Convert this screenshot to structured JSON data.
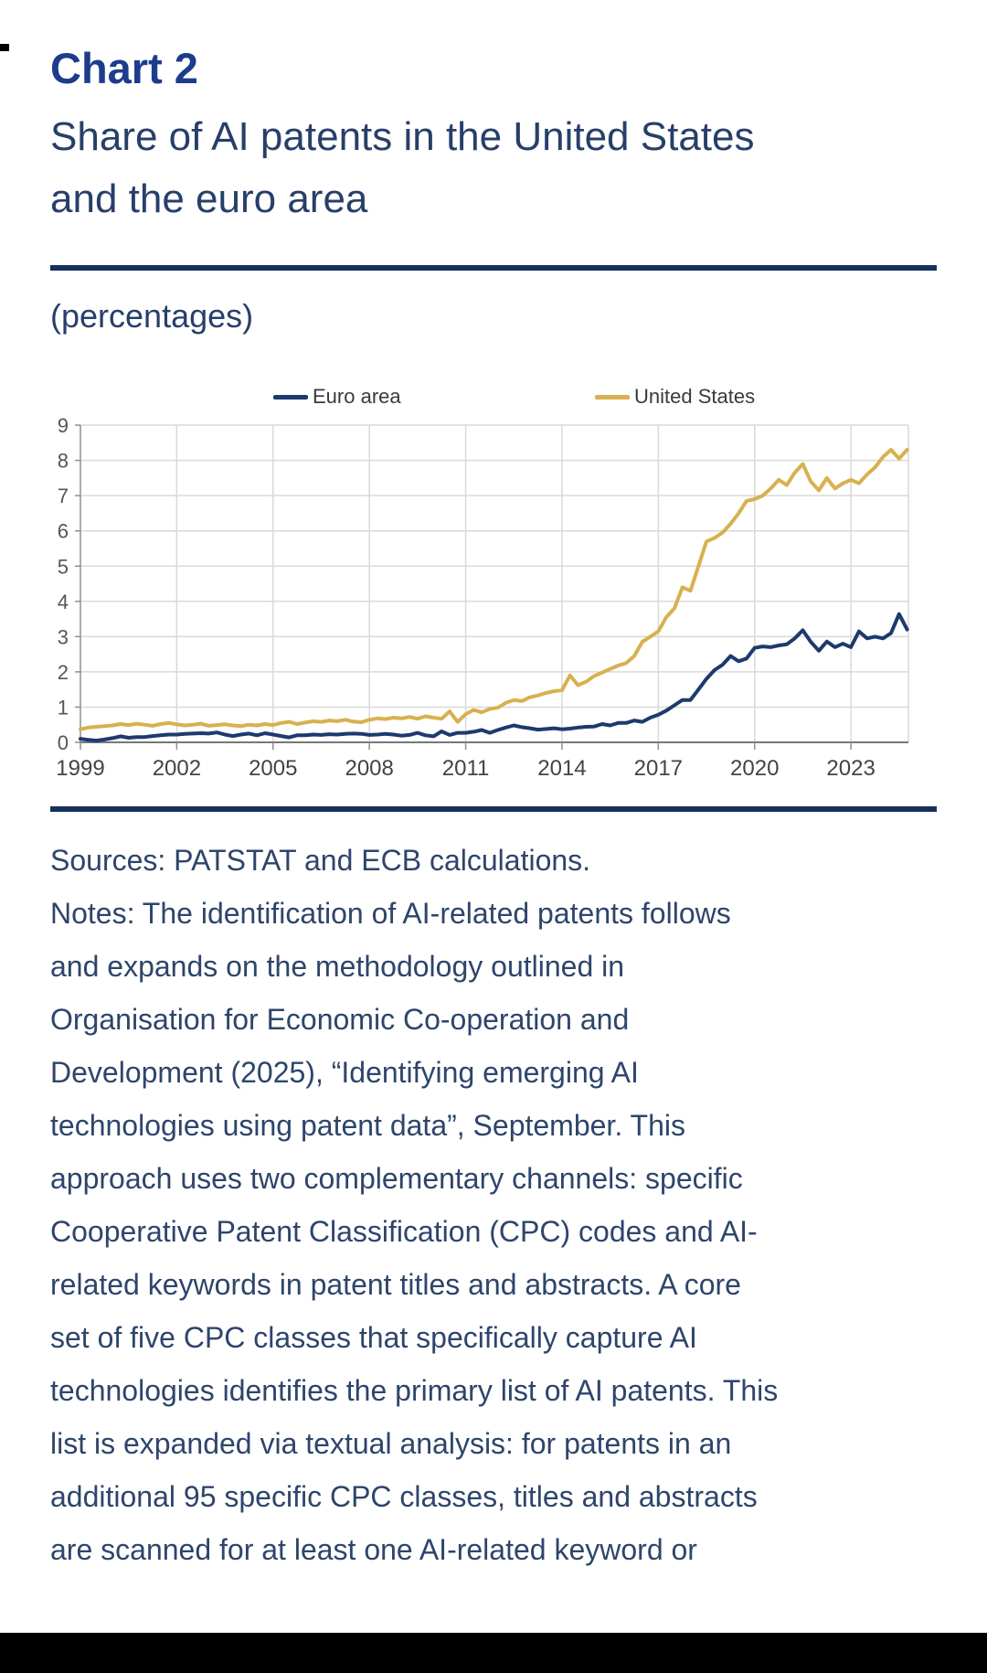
{
  "page": {
    "heading": "Chart 2",
    "title_lines": [
      "Share of AI patents in the United States",
      "and the euro area"
    ],
    "unit_label": "(percentages)",
    "sources": "Sources: PATSTAT and ECB calculations.",
    "notes_lines": [
      "Notes: The identification of AI-related patents follows",
      "and expands on the methodology outlined in",
      "Organisation for Economic Co-operation and",
      "Development (2025), “Identifying emerging AI",
      "technologies using patent data”, September. This",
      "approach uses two complementary channels: specific",
      "Cooperative Patent Classification (CPC) codes and AI-",
      "related keywords in patent titles and abstracts. A core",
      "set of five CPC classes that specifically capture AI",
      "technologies identifies the primary list of AI patents. This",
      "list is expanded via textual analysis: for patents in an",
      "additional 95 specific CPC classes, titles and abstracts",
      "are scanned for at least one AI-related keyword or"
    ]
  },
  "colors": {
    "heading_blue": "#1d3c8c",
    "body_navy": "#2e456b",
    "rule_navy": "#14315c",
    "euro_area_line": "#1c3a6e",
    "united_states_line": "#d7b14e",
    "gridline": "#d9d9d9",
    "axis": "#8f8f8f"
  },
  "chart_data": {
    "type": "line",
    "title": "Share of AI patents in the United States and the euro area",
    "unit": "percentages",
    "x_start": 1999,
    "x_step": 0.25,
    "x_ticks": [
      1999,
      2002,
      2005,
      2008,
      2011,
      2014,
      2017,
      2020,
      2023
    ],
    "y_ticks": [
      0,
      1,
      2,
      3,
      4,
      5,
      6,
      7,
      8,
      9
    ],
    "ylim": [
      0,
      9
    ],
    "xlim": [
      1999,
      2024.8
    ],
    "grid": true,
    "legend_position": "top",
    "series": [
      {
        "name": "Euro area",
        "color": "#1c3a6e",
        "values": [
          0.1,
          0.07,
          0.05,
          0.08,
          0.12,
          0.17,
          0.13,
          0.15,
          0.15,
          0.18,
          0.2,
          0.22,
          0.22,
          0.24,
          0.25,
          0.26,
          0.25,
          0.28,
          0.22,
          0.18,
          0.22,
          0.25,
          0.2,
          0.26,
          0.22,
          0.18,
          0.14,
          0.2,
          0.2,
          0.22,
          0.21,
          0.23,
          0.22,
          0.24,
          0.25,
          0.24,
          0.21,
          0.22,
          0.24,
          0.22,
          0.19,
          0.21,
          0.27,
          0.2,
          0.17,
          0.31,
          0.21,
          0.27,
          0.27,
          0.3,
          0.35,
          0.27,
          0.35,
          0.42,
          0.48,
          0.43,
          0.4,
          0.36,
          0.38,
          0.4,
          0.37,
          0.39,
          0.42,
          0.44,
          0.45,
          0.52,
          0.48,
          0.55,
          0.55,
          0.62,
          0.58,
          0.7,
          0.78,
          0.9,
          1.05,
          1.2,
          1.2,
          1.5,
          1.8,
          2.05,
          2.2,
          2.45,
          2.3,
          2.38,
          2.68,
          2.72,
          2.7,
          2.75,
          2.78,
          2.95,
          3.18,
          2.85,
          2.6,
          2.86,
          2.7,
          2.8,
          2.7,
          3.15,
          2.95,
          3.0,
          2.95,
          3.1,
          3.64,
          3.2
        ]
      },
      {
        "name": "United States",
        "color": "#d7b14e",
        "values": [
          0.37,
          0.42,
          0.44,
          0.46,
          0.48,
          0.52,
          0.49,
          0.53,
          0.5,
          0.47,
          0.52,
          0.55,
          0.51,
          0.48,
          0.5,
          0.53,
          0.47,
          0.49,
          0.51,
          0.48,
          0.46,
          0.5,
          0.48,
          0.52,
          0.49,
          0.55,
          0.58,
          0.52,
          0.56,
          0.6,
          0.58,
          0.62,
          0.6,
          0.64,
          0.59,
          0.57,
          0.64,
          0.68,
          0.66,
          0.7,
          0.68,
          0.72,
          0.67,
          0.74,
          0.7,
          0.67,
          0.88,
          0.58,
          0.8,
          0.92,
          0.85,
          0.95,
          0.98,
          1.12,
          1.2,
          1.17,
          1.28,
          1.33,
          1.4,
          1.45,
          1.48,
          1.9,
          1.62,
          1.72,
          1.88,
          1.98,
          2.08,
          2.18,
          2.25,
          2.45,
          2.85,
          3.0,
          3.15,
          3.55,
          3.8,
          4.4,
          4.3,
          5.0,
          5.7,
          5.8,
          5.95,
          6.2,
          6.5,
          6.85,
          6.9,
          7.0,
          7.2,
          7.45,
          7.3,
          7.65,
          7.9,
          7.4,
          7.15,
          7.5,
          7.2,
          7.35,
          7.45,
          7.35,
          7.6,
          7.8,
          8.1,
          8.3,
          8.05,
          8.3
        ]
      }
    ]
  }
}
